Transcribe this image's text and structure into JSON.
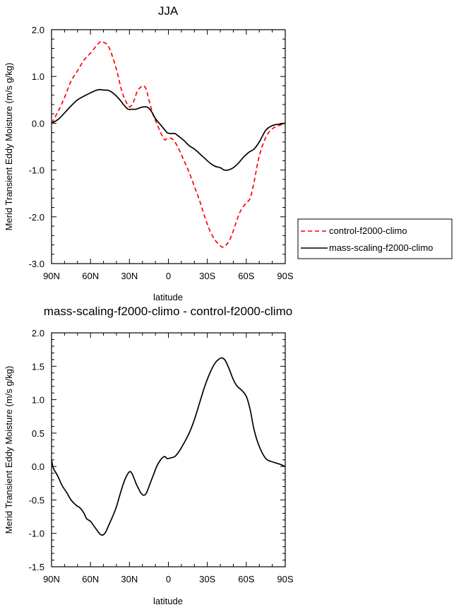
{
  "chart_data": [
    {
      "type": "line",
      "title": "JJA",
      "xlabel": "latitude",
      "ylabel": "Merid Transient Eddy Moisture (m/s g/kg)",
      "xlim": [
        90,
        -90
      ],
      "ylim": [
        -3.0,
        2.0
      ],
      "xticks": [
        90,
        60,
        30,
        0,
        -30,
        -60,
        -90
      ],
      "xticklabels": [
        "90N",
        "60N",
        "30N",
        "0",
        "30S",
        "60S",
        "90S"
      ],
      "yticks": [
        2.0,
        1.0,
        0.0,
        -1.0,
        -2.0,
        -3.0
      ],
      "yticklabels": [
        "2.0",
        "1.0",
        "0.0",
        "-1.0",
        "-2.0",
        "-3.0"
      ],
      "legend_position": "right",
      "series": [
        {
          "name": "control-f2000-climo",
          "color": "#ff0000",
          "style": "dashed",
          "x": [
            90,
            85,
            80,
            75,
            70,
            65,
            60,
            55,
            52,
            50,
            47,
            44,
            40,
            36,
            33,
            30,
            27,
            24,
            21,
            19,
            17,
            15,
            12,
            9,
            6,
            3,
            1,
            -2,
            -5,
            -8,
            -12,
            -16,
            -20,
            -24,
            -28,
            -32,
            -36,
            -40,
            -42,
            -44,
            -47,
            -50,
            -53,
            -56,
            -60,
            -63,
            -66,
            -70,
            -75,
            -80,
            -85,
            -90
          ],
          "values": [
            0.0,
            0.25,
            0.55,
            0.9,
            1.12,
            1.35,
            1.5,
            1.67,
            1.75,
            1.73,
            1.68,
            1.5,
            1.15,
            0.7,
            0.48,
            0.35,
            0.45,
            0.68,
            0.78,
            0.8,
            0.72,
            0.5,
            0.2,
            0.0,
            -0.2,
            -0.35,
            -0.33,
            -0.32,
            -0.4,
            -0.55,
            -0.8,
            -1.05,
            -1.35,
            -1.65,
            -2.0,
            -2.3,
            -2.5,
            -2.62,
            -2.65,
            -2.62,
            -2.5,
            -2.3,
            -2.05,
            -1.85,
            -1.7,
            -1.6,
            -1.25,
            -0.7,
            -0.3,
            -0.12,
            -0.05,
            0.0
          ]
        },
        {
          "name": "mass-scaling-f2000-climo",
          "color": "#000000",
          "style": "solid",
          "x": [
            90,
            85,
            80,
            75,
            70,
            65,
            60,
            56,
            53,
            50,
            46,
            42,
            38,
            34,
            31,
            28,
            25,
            22,
            19,
            16,
            13,
            10,
            7,
            4,
            1,
            -2,
            -5,
            -8,
            -12,
            -16,
            -20,
            -24,
            -28,
            -32,
            -36,
            -40,
            -43,
            -46,
            -50,
            -54,
            -58,
            -62,
            -66,
            -70,
            -75,
            -80,
            -85,
            -90
          ],
          "values": [
            0.0,
            0.08,
            0.22,
            0.37,
            0.5,
            0.58,
            0.65,
            0.7,
            0.72,
            0.71,
            0.7,
            0.63,
            0.52,
            0.38,
            0.3,
            0.3,
            0.3,
            0.33,
            0.35,
            0.34,
            0.25,
            0.1,
            0.0,
            -0.1,
            -0.2,
            -0.22,
            -0.22,
            -0.28,
            -0.37,
            -0.48,
            -0.55,
            -0.65,
            -0.75,
            -0.85,
            -0.92,
            -0.95,
            -1.0,
            -1.0,
            -0.95,
            -0.85,
            -0.72,
            -0.62,
            -0.55,
            -0.4,
            -0.15,
            -0.05,
            -0.02,
            0.0
          ]
        }
      ]
    },
    {
      "type": "line",
      "title": "mass-scaling-f2000-climo - control-f2000-climo",
      "xlabel": "latitude",
      "ylabel": "Merid Transient Eddy Moisture (m/s g/kg)",
      "xlim": [
        90,
        -90
      ],
      "ylim": [
        -1.5,
        2.0
      ],
      "xticks": [
        90,
        60,
        30,
        0,
        -30,
        -60,
        -90
      ],
      "xticklabels": [
        "90N",
        "60N",
        "30N",
        "0",
        "30S",
        "60S",
        "90S"
      ],
      "yticks": [
        2.0,
        1.5,
        1.0,
        0.5,
        0.0,
        -0.5,
        -1.0,
        -1.5
      ],
      "yticklabels": [
        "2.0",
        "1.5",
        "1.0",
        "0.5",
        "0.0",
        "-0.5",
        "-1.0",
        "-1.5"
      ],
      "series": [
        {
          "color": "#000000",
          "style": "solid",
          "x": [
            90,
            89,
            88,
            85,
            82,
            78,
            75,
            71,
            68,
            65,
            63,
            60,
            57,
            54,
            52,
            50,
            48,
            46,
            43,
            40,
            37,
            34,
            31,
            29,
            27,
            25,
            23,
            21,
            19,
            17,
            15,
            12,
            9,
            6,
            3,
            1,
            -2,
            -5,
            -8,
            -12,
            -16,
            -20,
            -24,
            -28,
            -32,
            -36,
            -40,
            -42,
            -44,
            -47,
            -50,
            -53,
            -56,
            -60,
            -63,
            -66,
            -70,
            -75,
            -80,
            -85,
            -90
          ],
          "values": [
            0.1,
            0.0,
            -0.05,
            -0.15,
            -0.28,
            -0.4,
            -0.5,
            -0.58,
            -0.62,
            -0.7,
            -0.78,
            -0.82,
            -0.9,
            -0.98,
            -1.02,
            -1.02,
            -0.97,
            -0.88,
            -0.75,
            -0.6,
            -0.4,
            -0.22,
            -0.1,
            -0.08,
            -0.15,
            -0.25,
            -0.33,
            -0.4,
            -0.43,
            -0.4,
            -0.3,
            -0.15,
            0.0,
            0.1,
            0.15,
            0.12,
            0.13,
            0.15,
            0.22,
            0.35,
            0.5,
            0.7,
            0.95,
            1.2,
            1.4,
            1.55,
            1.62,
            1.62,
            1.58,
            1.45,
            1.3,
            1.2,
            1.15,
            1.05,
            0.85,
            0.55,
            0.3,
            0.12,
            0.07,
            0.04,
            0.0
          ]
        }
      ]
    }
  ]
}
